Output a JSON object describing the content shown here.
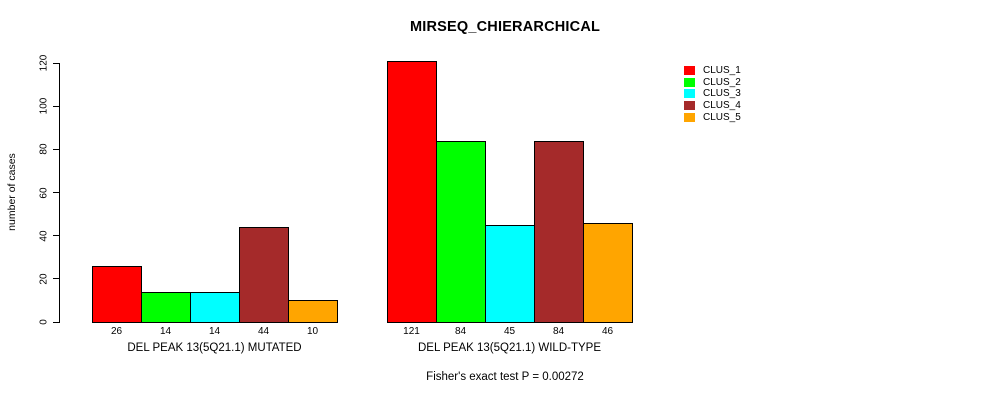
{
  "chart_data": {
    "type": "bar",
    "title": "MIRSEQ_CHIERARCHICAL",
    "ylabel": "number of cases",
    "ylim": [
      0,
      120
    ],
    "yticks": [
      0,
      20,
      40,
      60,
      80,
      100,
      120
    ],
    "grid": false,
    "legend_position": "right",
    "background_color": "#ffffff",
    "bar_border_color": "#000000",
    "categories": [
      "DEL PEAK 13(5Q21.1) MUTATED",
      "DEL PEAK 13(5Q21.1) WILD-TYPE"
    ],
    "series": [
      {
        "name": "CLUS_1",
        "color": "#FF0000",
        "values": [
          26,
          121
        ]
      },
      {
        "name": "CLUS_2",
        "color": "#00FF00",
        "values": [
          14,
          84
        ]
      },
      {
        "name": "CLUS_3",
        "color": "#00FFFF",
        "values": [
          14,
          45
        ]
      },
      {
        "name": "CLUS_4",
        "color": "#A52A2A",
        "values": [
          44,
          84
        ]
      },
      {
        "name": "CLUS_5",
        "color": "#FFA500",
        "values": [
          10,
          46
        ]
      }
    ],
    "value_labels_shown": true,
    "caption": "Fisher's exact test P = 0.00272"
  }
}
